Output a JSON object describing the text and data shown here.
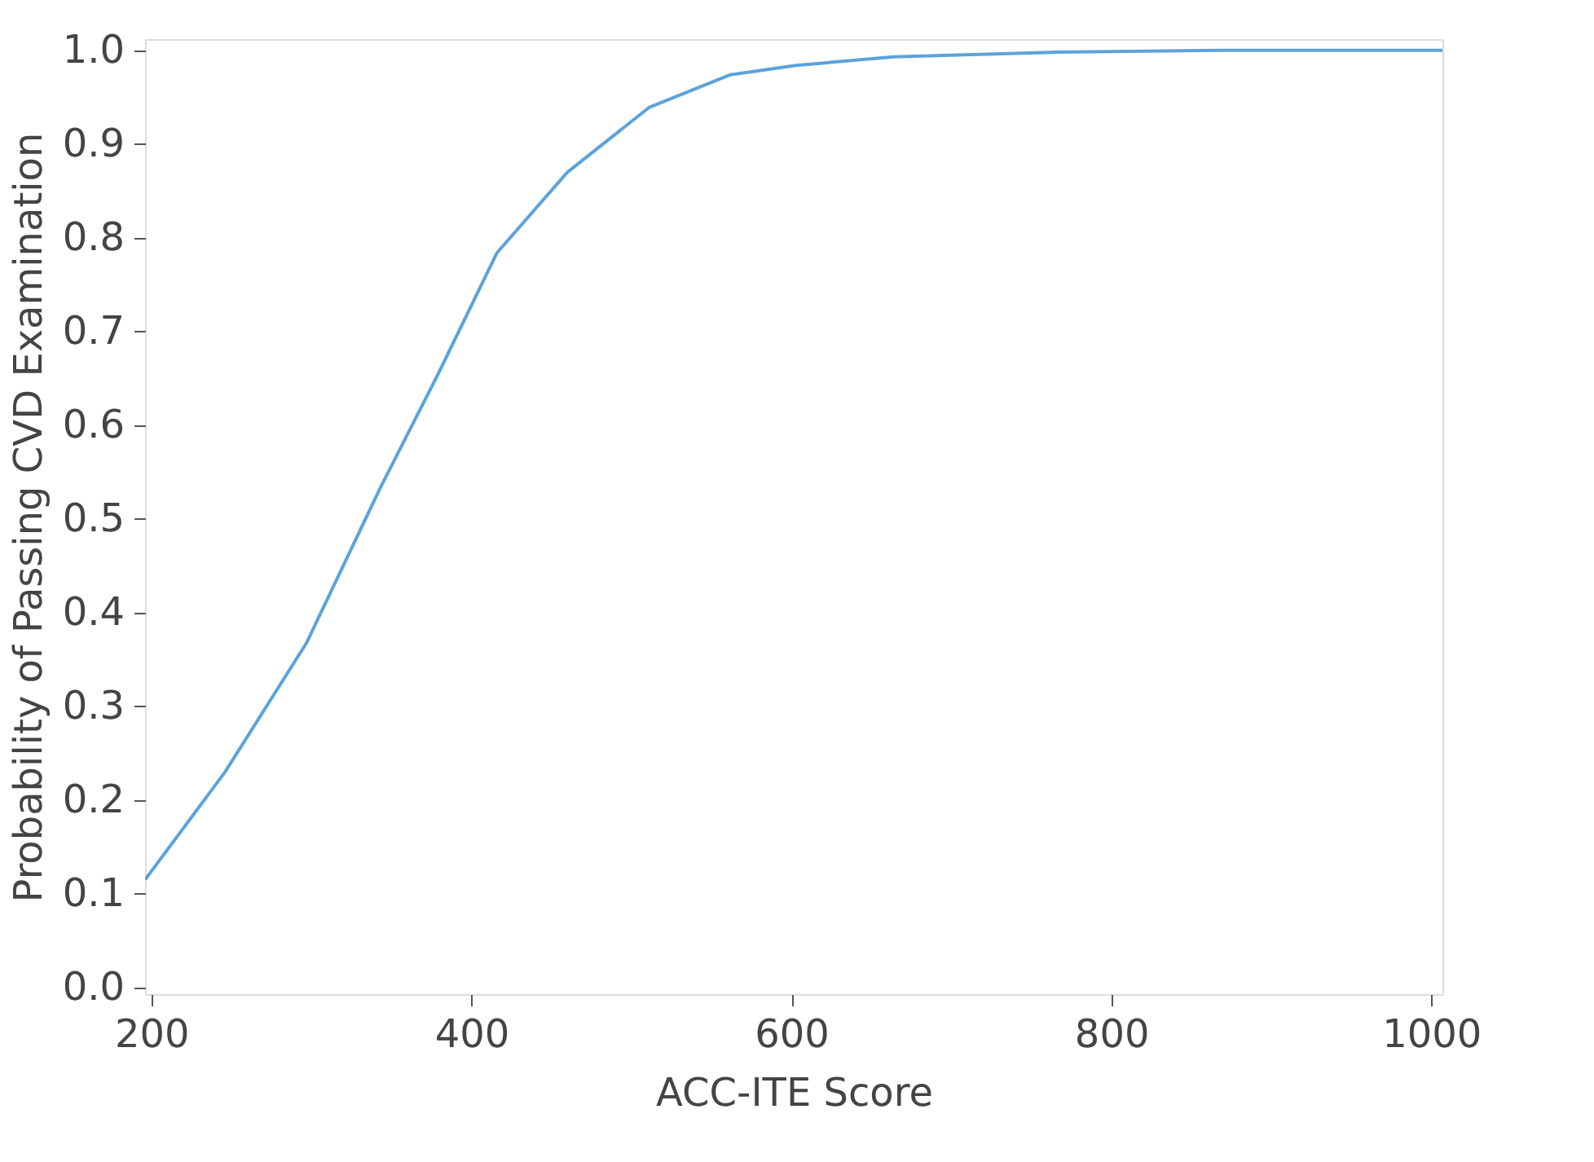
{
  "chart_data": {
    "type": "line",
    "xlabel": "ACC-ITE Score",
    "ylabel": "Probability of Passing CVD Examination",
    "x": [
      196,
      246,
      297,
      343,
      379,
      416,
      460,
      511,
      562,
      603,
      664,
      766,
      868,
      1007
    ],
    "series": [
      {
        "color": "#5ba3dc",
        "values": [
          0.115,
          0.23,
          0.368,
          0.533,
          0.654,
          0.784,
          0.87,
          0.939,
          0.974,
          0.984,
          0.993,
          0.998,
          1.0,
          1.0
        ]
      }
    ],
    "xlim": [
      196,
      1007
    ],
    "ylim": [
      -0.007,
      1.012
    ],
    "xticks": [
      200,
      400,
      600,
      800,
      1000
    ],
    "yticks": [
      {
        "value": 0,
        "label": "0.0"
      },
      {
        "value": 0.1,
        "label": "0.1"
      },
      {
        "value": 0.2,
        "label": "0.2"
      },
      {
        "value": 0.3,
        "label": "0.3"
      },
      {
        "value": 0.4,
        "label": "0.4"
      },
      {
        "value": 0.5,
        "label": "0.5"
      },
      {
        "value": 0.6,
        "label": "0.6"
      },
      {
        "value": 0.7,
        "label": "0.7"
      },
      {
        "value": 0.8,
        "label": "0.8"
      },
      {
        "value": 0.9,
        "label": "0.9"
      },
      {
        "value": 1.0,
        "label": "1.0"
      }
    ],
    "grid": false,
    "marker": "none",
    "line_style": "solid"
  }
}
